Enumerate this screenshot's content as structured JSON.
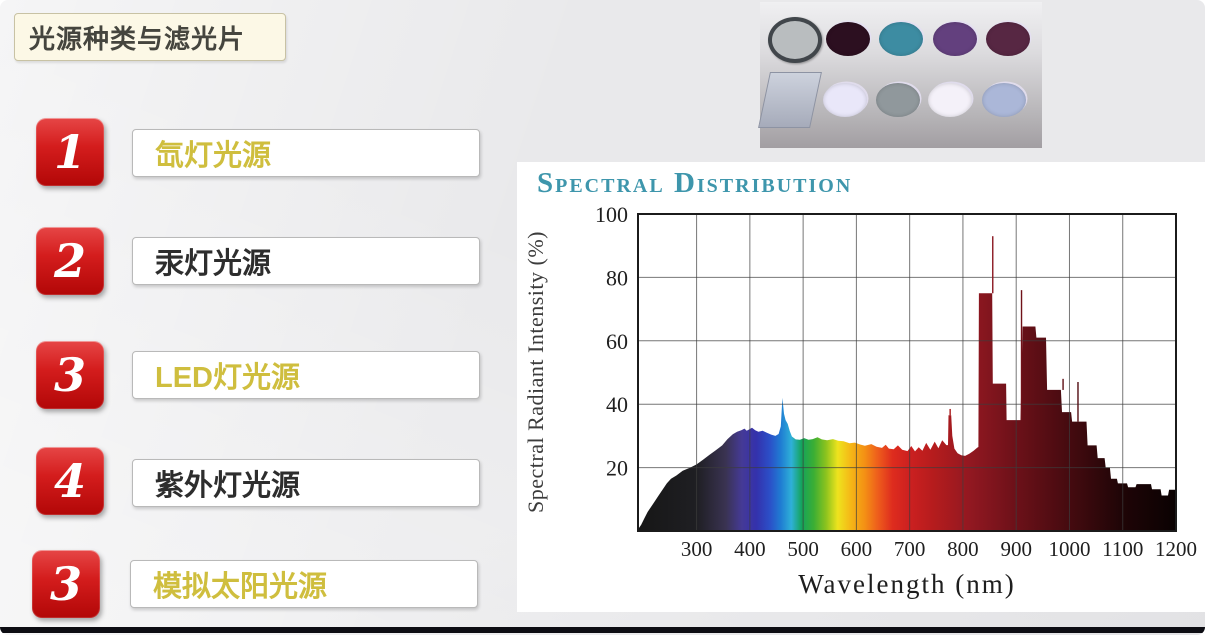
{
  "slide": {
    "title": "光源种类与滤光片"
  },
  "list": {
    "items": [
      {
        "num": "1",
        "label": "氙灯光源",
        "label_color": "#cfbe3e"
      },
      {
        "num": "2",
        "label": "汞灯光源",
        "label_color": "#2d2d2d"
      },
      {
        "num": "3",
        "label": "LED灯光源",
        "label_color": "#cfbe3e"
      },
      {
        "num": "4",
        "label": "紫外灯光源",
        "label_color": "#2d2d2d"
      },
      {
        "num": "3",
        "label": "模拟太阳光源",
        "label_color": "#cfbe3e"
      }
    ]
  },
  "filters_panel": {
    "row1": [
      {
        "name": "gray lens with dark ring",
        "color": "#b9bdbf",
        "ring": "#41464b"
      },
      {
        "name": "dark maroon filter",
        "color": "#2c0f20"
      },
      {
        "name": "teal filter",
        "color": "#3d8ca2"
      },
      {
        "name": "purple filter",
        "color": "#63407e"
      },
      {
        "name": "dark plum filter",
        "color": "#572743"
      }
    ],
    "row2": [
      {
        "name": "square glass plate",
        "color": "#b6bdca"
      },
      {
        "name": "pale lavender filter",
        "color": "#e9e7f9"
      },
      {
        "name": "gray filter",
        "color": "#90989c"
      },
      {
        "name": "white filter",
        "color": "#f4f1f9"
      },
      {
        "name": "periwinkle filter",
        "color": "#abb7d8"
      }
    ]
  },
  "chart_data": {
    "type": "area",
    "title": "Spectral Distribution",
    "title_color": "#3e96ac",
    "xlabel": "Wavelength (nm)",
    "ylabel": "Spectral Radiant Intensity (%)",
    "xlim": [
      190,
      1200
    ],
    "ylim": [
      0,
      100
    ],
    "xticks": [
      300,
      400,
      500,
      600,
      700,
      800,
      900,
      1000,
      1100,
      1200
    ],
    "yticks": [
      20,
      40,
      60,
      80,
      100
    ],
    "grid": true,
    "profile": {
      "x": [
        190,
        196,
        202,
        208,
        214,
        220,
        228,
        236,
        244,
        252,
        262,
        274,
        288,
        300,
        312,
        324,
        336,
        348,
        358,
        368,
        376,
        384,
        390,
        394,
        398,
        404,
        410,
        416,
        424,
        432,
        440,
        448,
        454,
        458,
        461,
        464,
        467,
        471,
        475,
        479,
        486,
        494,
        502,
        510,
        518,
        527,
        535,
        545,
        556,
        566,
        576,
        587,
        597,
        607,
        616,
        628,
        638,
        648,
        655,
        661,
        670,
        678,
        686,
        696,
        703,
        710,
        717,
        724,
        731,
        739,
        747,
        754,
        761,
        769,
        772,
        773,
        778,
        780,
        784,
        790,
        797,
        804,
        812,
        820,
        827,
        829,
        830,
        855,
        856,
        881,
        882,
        905,
        908,
        912,
        936,
        938,
        956,
        958,
        984,
        986,
        1003,
        1005,
        1032,
        1034,
        1051,
        1053,
        1066,
        1068,
        1076,
        1078,
        1089,
        1091,
        1108,
        1110,
        1124,
        1126,
        1153,
        1155,
        1171,
        1173,
        1185,
        1187,
        1200
      ],
      "y": [
        0.5,
        2,
        4,
        6,
        7.5,
        9,
        11,
        13,
        15,
        16.5,
        17.5,
        19,
        20,
        21,
        22.5,
        24,
        25.5,
        27,
        29,
        30.5,
        31.3,
        31.8,
        32.3,
        31.6,
        32,
        32.6,
        31.8,
        31.3,
        31.6,
        31,
        30.4,
        30,
        30.6,
        33,
        42,
        37,
        35,
        33.8,
        31.5,
        29.8,
        28.9,
        28.8,
        29.3,
        28.8,
        29,
        29.6,
        28.9,
        28.6,
        29,
        28.5,
        28.3,
        27.7,
        27.9,
        27.3,
        26.9,
        27.4,
        26.6,
        26.2,
        27.2,
        26,
        25.8,
        27,
        25.6,
        25.2,
        26.8,
        25.1,
        26.4,
        25.3,
        27.8,
        25.6,
        28.2,
        26.1,
        28.6,
        27.1,
        27.1,
        36.5,
        36.5,
        30,
        26,
        24.5,
        23.9,
        23.7,
        24.4,
        25.3,
        26.3,
        26.5,
        75,
        75,
        46.5,
        46.5,
        35,
        35,
        35,
        64.5,
        64.5,
        61,
        61,
        44.5,
        44.5,
        37.5,
        37.5,
        34.5,
        34.5,
        27,
        27,
        23,
        23,
        20,
        20,
        16.5,
        16.5,
        15,
        15,
        13.8,
        13.8,
        14.8,
        14.8,
        13.2,
        13.2,
        11.2,
        11.2,
        13,
        13
      ]
    },
    "spikes": [
      {
        "x": 776,
        "y_from": 36.5,
        "y_to": 38.5,
        "color": "#a81a1a"
      },
      {
        "x": 856,
        "y_from": 75,
        "y_to": 93,
        "color": "#8a1620"
      },
      {
        "x": 910,
        "y_from": 35,
        "y_to": 76,
        "color": "#701219"
      },
      {
        "x": 988,
        "y_from": 44.5,
        "y_to": 48,
        "color": "#5f0f15"
      },
      {
        "x": 1016,
        "y_from": 34.5,
        "y_to": 47,
        "color": "#530d12"
      }
    ],
    "spectrum_gradient": [
      {
        "nm": 190,
        "color": "#161616"
      },
      {
        "nm": 300,
        "color": "#1f1f23"
      },
      {
        "nm": 355,
        "color": "#3a3352"
      },
      {
        "nm": 385,
        "color": "#453a96"
      },
      {
        "nm": 412,
        "color": "#3431ac"
      },
      {
        "nm": 438,
        "color": "#2b50c8"
      },
      {
        "nm": 458,
        "color": "#1f7cd2"
      },
      {
        "nm": 478,
        "color": "#2fb0d8"
      },
      {
        "nm": 497,
        "color": "#14a45c"
      },
      {
        "nm": 520,
        "color": "#3bae34"
      },
      {
        "nm": 543,
        "color": "#8cc31e"
      },
      {
        "nm": 565,
        "color": "#eee31e"
      },
      {
        "nm": 590,
        "color": "#f5b616"
      },
      {
        "nm": 615,
        "color": "#f49114"
      },
      {
        "nm": 640,
        "color": "#ee5e1c"
      },
      {
        "nm": 668,
        "color": "#de2c1e"
      },
      {
        "nm": 700,
        "color": "#cc2020"
      },
      {
        "nm": 745,
        "color": "#b51c1d"
      },
      {
        "nm": 815,
        "color": "#911821"
      },
      {
        "nm": 895,
        "color": "#6e1119"
      },
      {
        "nm": 995,
        "color": "#470b10"
      },
      {
        "nm": 1095,
        "color": "#200507"
      },
      {
        "nm": 1200,
        "color": "#0a0202"
      }
    ]
  }
}
